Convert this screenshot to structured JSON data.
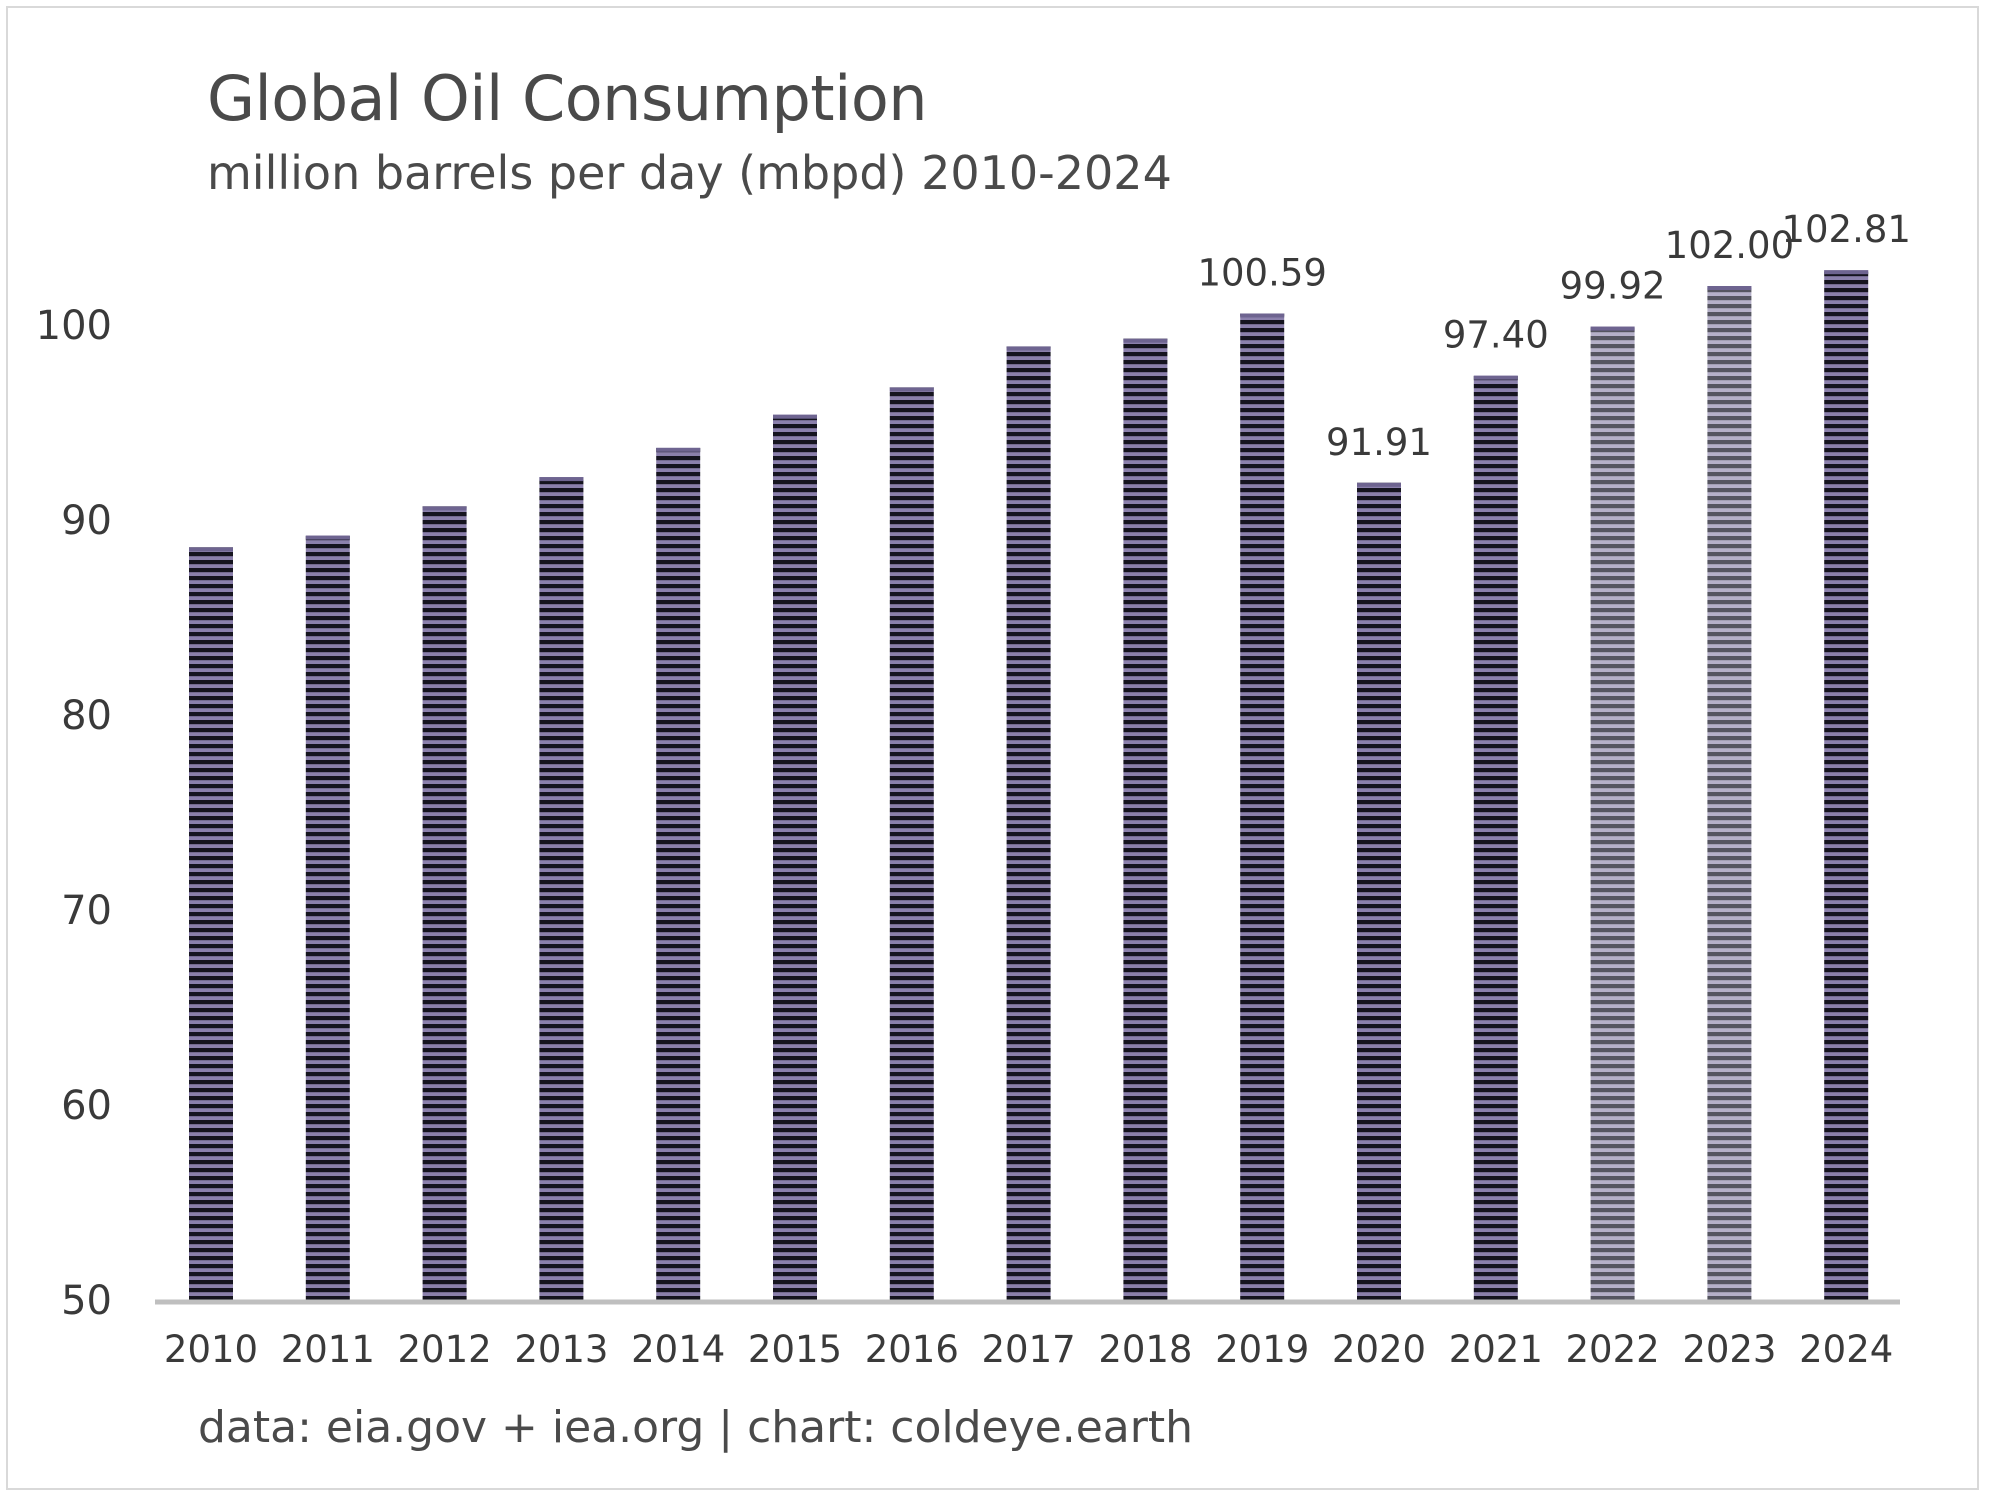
{
  "chart_data": {
    "type": "bar",
    "title": "Global Oil Consumption",
    "subtitle": "million barrels per day (mbpd) 2010-2024",
    "source": "data: eia.gov + iea.org | chart: coldeye.earth",
    "categories": [
      "2010",
      "2011",
      "2012",
      "2013",
      "2014",
      "2015",
      "2016",
      "2017",
      "2018",
      "2019",
      "2020",
      "2021",
      "2022",
      "2023",
      "2024"
    ],
    "values": [
      88.6,
      89.2,
      90.7,
      92.2,
      93.7,
      95.4,
      96.8,
      98.9,
      99.3,
      100.59,
      91.91,
      97.4,
      99.92,
      102.0,
      102.81
    ],
    "data_labels": [
      "",
      "",
      "",
      "",
      "",
      "",
      "",
      "",
      "",
      "100.59",
      "91.91",
      "97.40",
      "99.92",
      "102.00",
      "102.81"
    ],
    "ylim": [
      50,
      103
    ],
    "yticks": [
      "50",
      "60",
      "70",
      "80",
      "90",
      "100"
    ],
    "grid": false,
    "xlabel": "",
    "ylabel": "",
    "colors": {
      "bar_dark": "#15141f",
      "bar_light": "#8b80ac",
      "bar_dark_faded": "#555560",
      "bar_light_faded": "#b5b0c8",
      "bar_cap": "#6e6490",
      "axis": "#bfbfbf",
      "text": "#4a4a4a"
    },
    "faded_categories": [
      "2022",
      "2023"
    ]
  }
}
